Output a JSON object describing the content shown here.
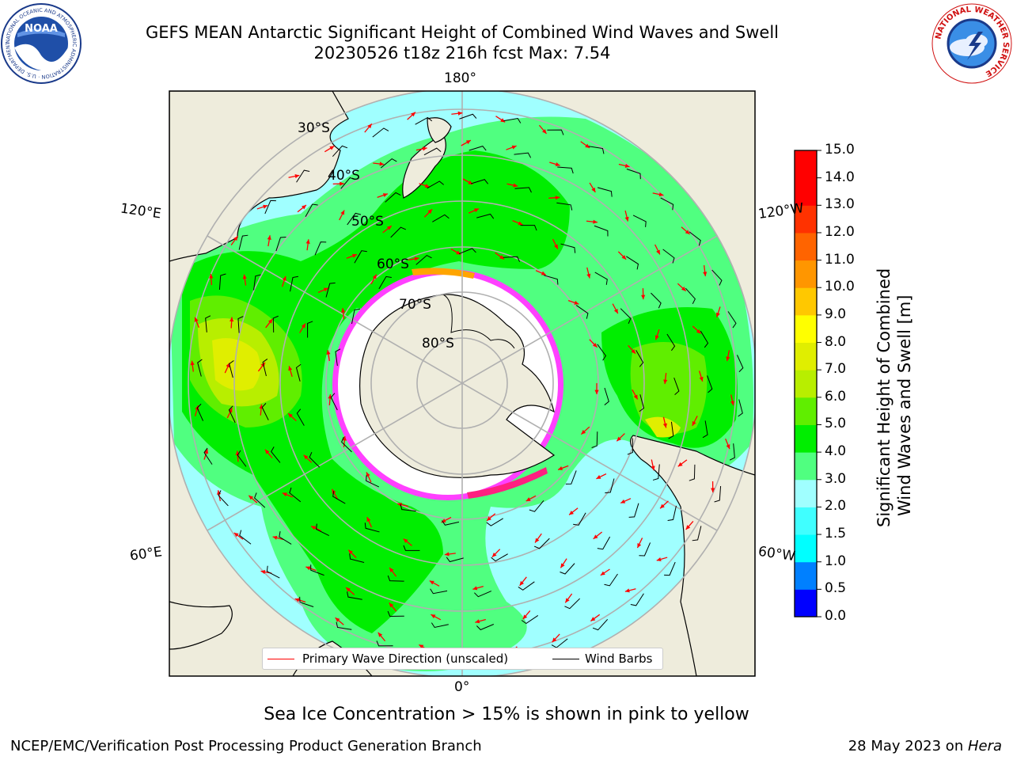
{
  "header": {
    "title_line1": "GEFS MEAN Antarctic Significant Height of Combined Wind Waves and Swell",
    "title_line2": "20230526 t18z 216h fcst   Max: 7.54",
    "left_logo": "NOAA",
    "left_logo_ring": "NATIONAL OCEANIC AND ATMOSPHERIC ADMINISTRATION · U.S. DEPARTMENT OF COMMERCE",
    "right_logo_ring": "NATIONAL WEATHER SERVICE"
  },
  "map": {
    "lon_labels": {
      "top": "180°",
      "bottom": "0°",
      "left_upper": "120°E",
      "right_upper": "120°W",
      "left_lower": "60°E",
      "right_lower": "60°W"
    },
    "lat_labels": [
      "30°S",
      "40°S",
      "50°S",
      "60°S",
      "70°S",
      "80°S"
    ],
    "legend": {
      "primary": "Primary Wave Direction (unscaled)",
      "barbs": "Wind Barbs"
    }
  },
  "colorbar": {
    "label_line1": "Significant Height of Combined",
    "label_line2": "Wind Waves and Swell [m]",
    "ticks": [
      "0.0",
      "0.5",
      "1.0",
      "1.5",
      "2.0",
      "3.0",
      "4.0",
      "5.0",
      "6.0",
      "7.0",
      "8.0",
      "9.0",
      "10.0",
      "11.0",
      "12.0",
      "13.0",
      "14.0",
      "15.0"
    ],
    "colors": [
      "#0000ff",
      "#0080ff",
      "#00ffff",
      "#40ffff",
      "#a0ffff",
      "#50ff80",
      "#00ee00",
      "#60ee00",
      "#b8ee00",
      "#e0ee00",
      "#ffff00",
      "#ffc800",
      "#ff9600",
      "#ff6400",
      "#ff3200",
      "#ff0000",
      "#ff0000"
    ]
  },
  "caption": "Sea Ice Concentration > 15% is shown in pink to yellow",
  "footer": {
    "left": "NCEP/EMC/Verification Post Processing Product Generation Branch",
    "right_date": "28 May 2023 on ",
    "right_host": "Hera"
  }
}
